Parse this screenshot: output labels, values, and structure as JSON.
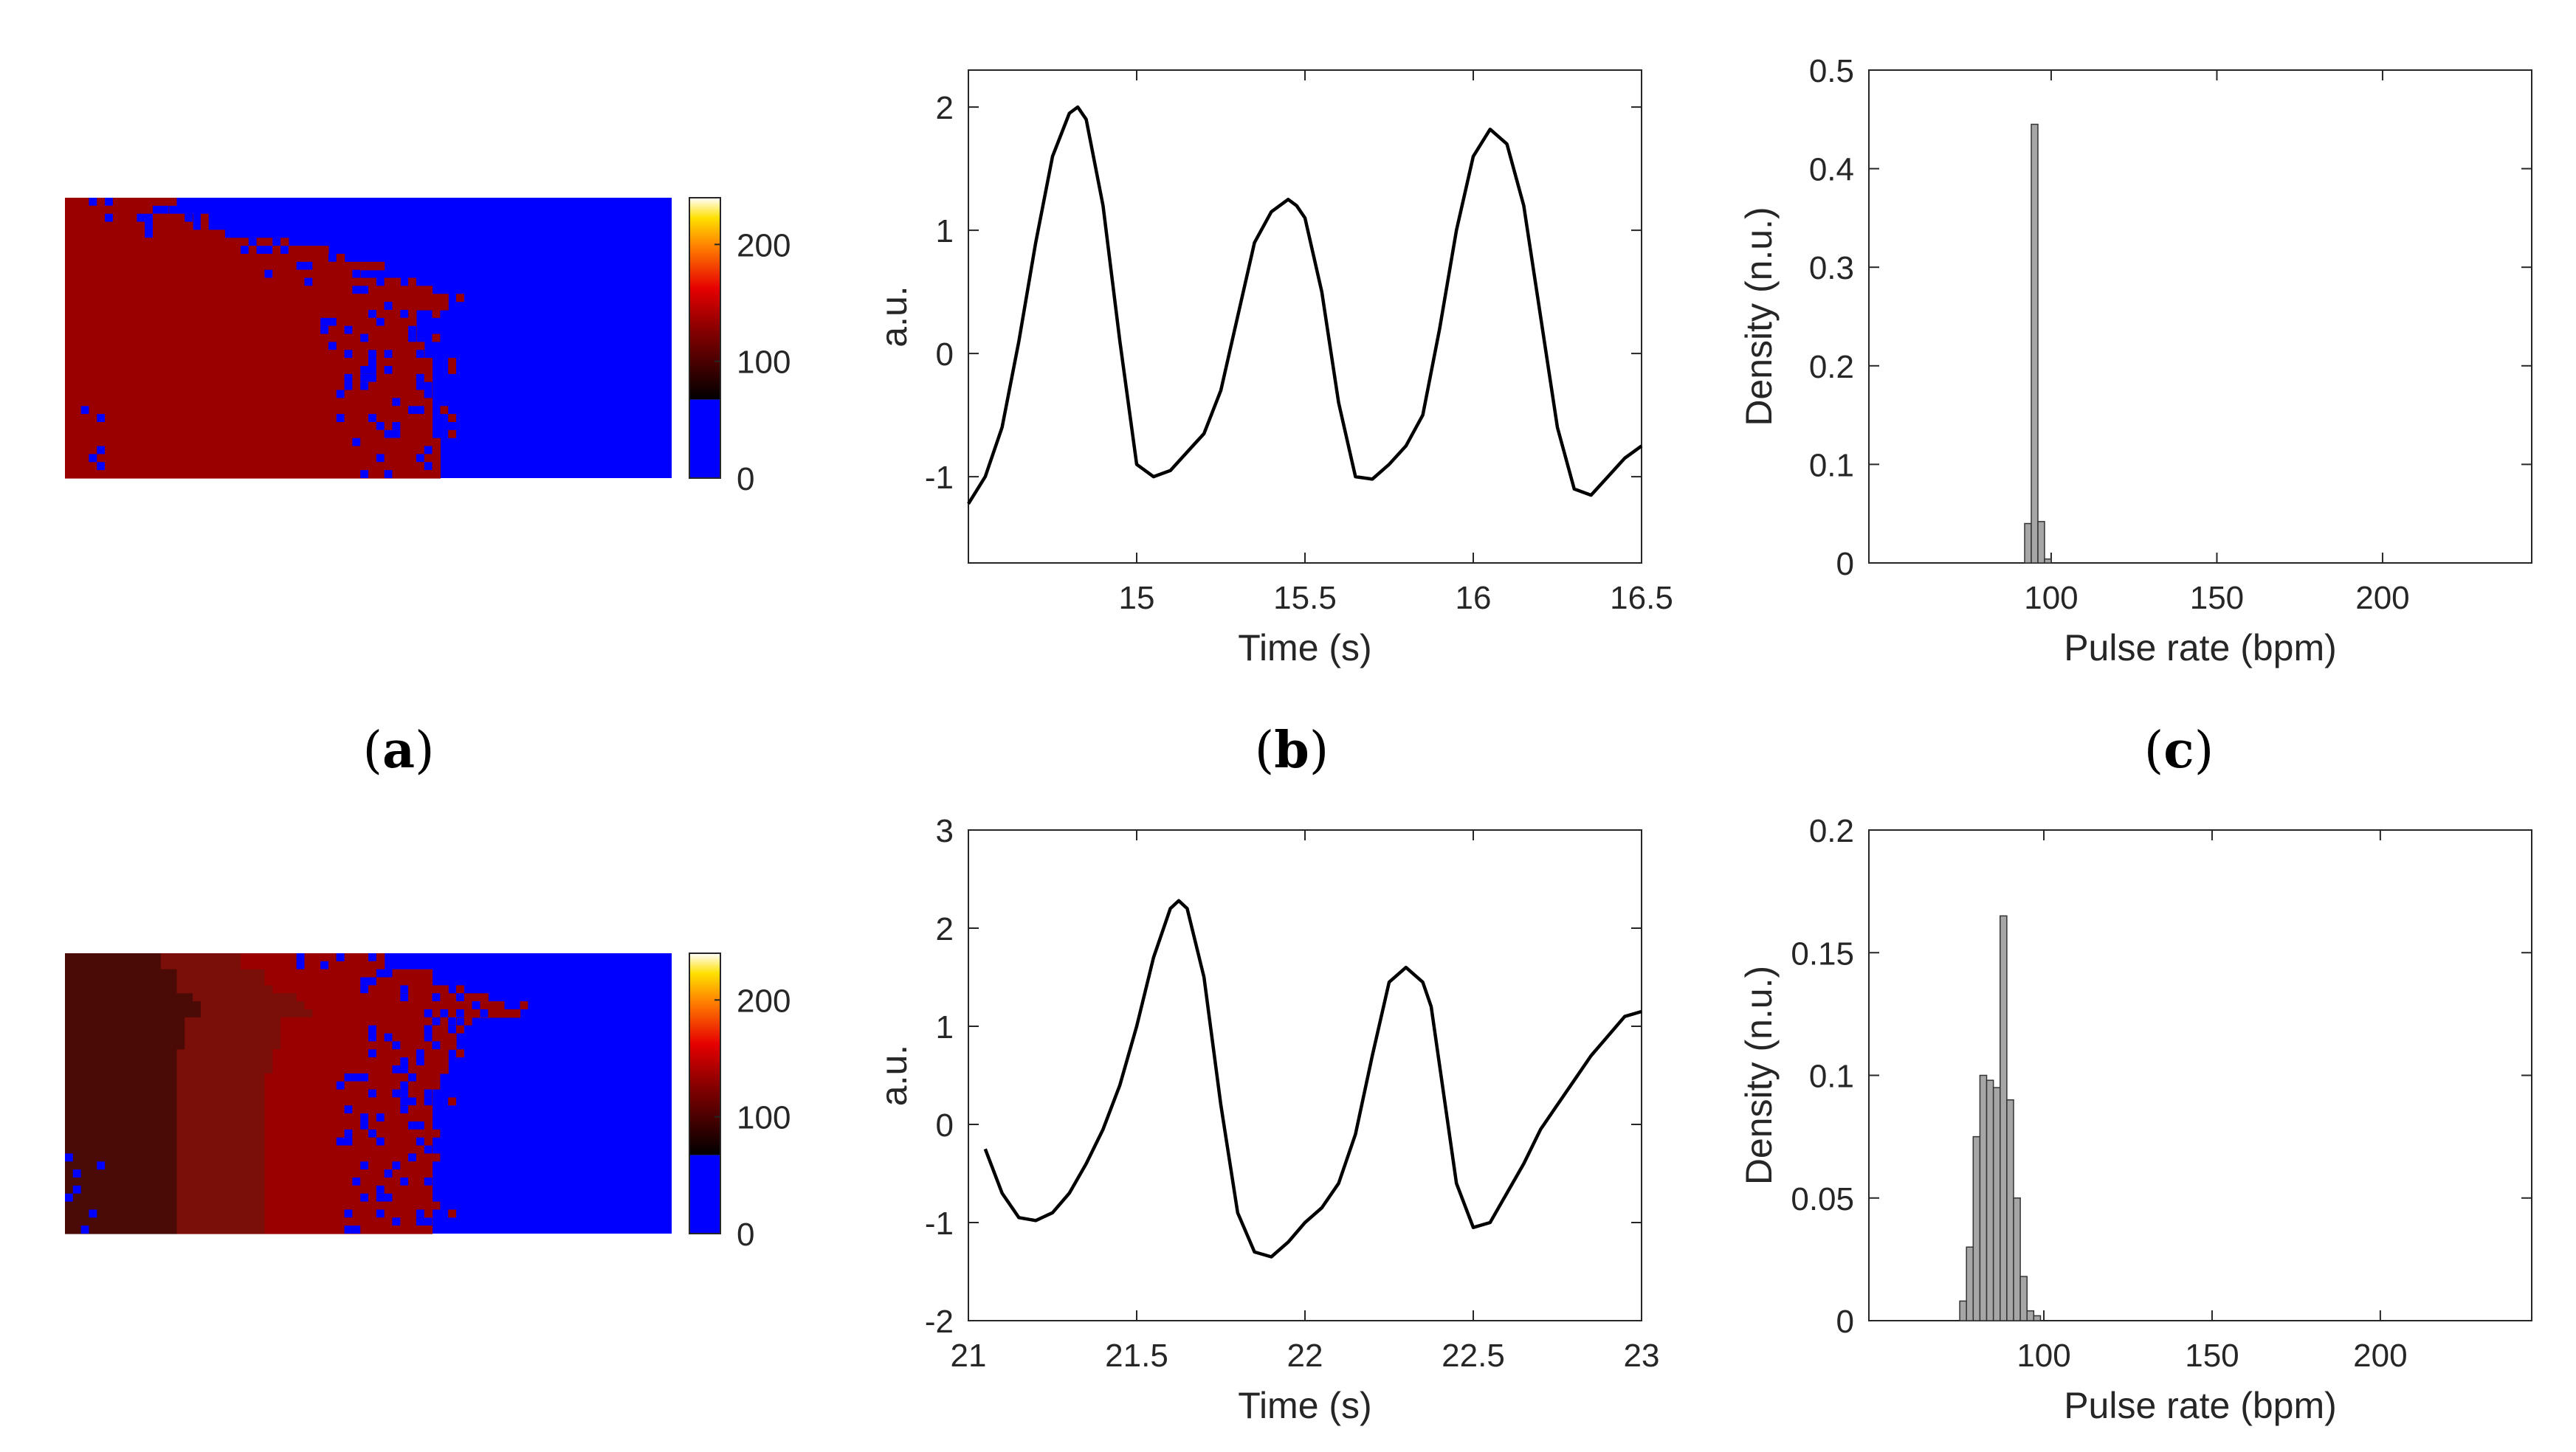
{
  "subfigure_labels": [
    {
      "open": "(",
      "letter": "a",
      "close": ")"
    },
    {
      "open": "(",
      "letter": "b",
      "close": ")"
    },
    {
      "open": "(",
      "letter": "c",
      "close": ")"
    }
  ],
  "colors": {
    "blue": "#0000ff",
    "red_dark": "#9a0000",
    "red_mid": "#7a0e08",
    "red_darker": "#4a0a06",
    "line": "#000000",
    "bar_fill": "#a6a6a6",
    "bar_edge": "#333333",
    "axis": "#262626"
  },
  "chart_data": [
    {
      "id": "heatmap-top",
      "type": "heatmap",
      "grid": {
        "cols": 76,
        "rows": 35
      },
      "boundary_cols": [
        13,
        13,
        16,
        16,
        20,
        28,
        33,
        35,
        40,
        37,
        42,
        46,
        48,
        48,
        44,
        44,
        44,
        44,
        45,
        45,
        46,
        46,
        46,
        46,
        46,
        46,
        46,
        46,
        46,
        46,
        47,
        47,
        47,
        47,
        47
      ],
      "colorbar": {
        "ticks": [
          0,
          100,
          200
        ],
        "range": [
          0,
          240
        ],
        "blue_fraction": 0.28
      }
    },
    {
      "id": "heatmap-bottom",
      "type": "heatmap",
      "grid": {
        "cols": 76,
        "rows": 35
      },
      "boundary_cols": [
        40,
        40,
        46,
        46,
        48,
        53,
        55,
        57,
        49,
        49,
        49,
        49,
        48,
        48,
        48,
        46,
        46,
        46,
        46,
        46,
        46,
        46,
        46,
        46,
        46,
        46,
        46,
        46,
        46,
        46,
        46,
        46,
        46,
        46,
        46
      ],
      "colorbar": {
        "ticks": [
          0,
          100,
          200
        ],
        "range": [
          0,
          240
        ],
        "blue_fraction": 0.28
      }
    },
    {
      "id": "signal-top",
      "type": "line",
      "x": [
        14.5,
        14.55,
        14.6,
        14.65,
        14.7,
        14.75,
        14.8,
        14.825,
        14.85,
        14.9,
        14.95,
        15.0,
        15.05,
        15.1,
        15.15,
        15.2,
        15.25,
        15.3,
        15.35,
        15.4,
        15.45,
        15.475,
        15.5,
        15.55,
        15.6,
        15.65,
        15.7,
        15.75,
        15.8,
        15.85,
        15.9,
        15.95,
        16.0,
        16.05,
        16.1,
        16.15,
        16.2,
        16.25,
        16.3,
        16.35,
        16.4,
        16.45,
        16.5
      ],
      "y": [
        -1.22,
        -1.0,
        -0.6,
        0.1,
        0.9,
        1.6,
        1.95,
        2.0,
        1.9,
        1.2,
        0.1,
        -0.9,
        -1.0,
        -0.95,
        -0.8,
        -0.65,
        -0.3,
        0.3,
        0.9,
        1.15,
        1.25,
        1.2,
        1.1,
        0.5,
        -0.4,
        -1.0,
        -1.02,
        -0.9,
        -0.75,
        -0.5,
        0.2,
        1.0,
        1.6,
        1.82,
        1.7,
        1.2,
        0.3,
        -0.6,
        -1.1,
        -1.15,
        -1.0,
        -0.85,
        -0.75
      ],
      "xlabel": "Time (s)",
      "ylabel": "a.u.",
      "xlim": [
        14.5,
        16.5
      ],
      "ylim": [
        -1.7,
        2.3
      ],
      "xticks": [
        15,
        15.5,
        16,
        16.5
      ],
      "xtick_labels": [
        "15",
        "15.5",
        "16",
        "16.5"
      ],
      "yticks": [
        -1,
        0,
        1,
        2
      ],
      "ytick_labels": [
        "-1",
        "0",
        "1",
        "2"
      ]
    },
    {
      "id": "signal-bottom",
      "type": "line",
      "x": [
        21.05,
        21.1,
        21.15,
        21.2,
        21.25,
        21.3,
        21.35,
        21.4,
        21.45,
        21.5,
        21.55,
        21.6,
        21.625,
        21.65,
        21.7,
        21.75,
        21.8,
        21.85,
        21.9,
        21.95,
        22.0,
        22.05,
        22.1,
        22.15,
        22.2,
        22.25,
        22.3,
        22.35,
        22.375,
        22.4,
        22.45,
        22.5,
        22.55,
        22.6,
        22.65,
        22.7,
        22.75,
        22.8,
        22.85,
        22.9,
        22.95,
        23.0
      ],
      "y": [
        -0.25,
        -0.7,
        -0.95,
        -0.98,
        -0.9,
        -0.7,
        -0.4,
        -0.05,
        0.4,
        1.0,
        1.7,
        2.2,
        2.28,
        2.2,
        1.5,
        0.2,
        -0.9,
        -1.3,
        -1.35,
        -1.2,
        -1.0,
        -0.85,
        -0.6,
        -0.1,
        0.7,
        1.45,
        1.6,
        1.45,
        1.2,
        0.6,
        -0.6,
        -1.05,
        -1.0,
        -0.7,
        -0.4,
        -0.05,
        0.2,
        0.45,
        0.7,
        0.9,
        1.1,
        1.15
      ],
      "xlabel": "Time (s)",
      "ylabel": "a.u.",
      "xlim": [
        21,
        23
      ],
      "ylim": [
        -2,
        3
      ],
      "xticks": [
        21,
        21.5,
        22,
        22.5,
        23
      ],
      "xtick_labels": [
        "21",
        "21.5",
        "22",
        "22.5",
        "23"
      ],
      "yticks": [
        -2,
        -1,
        0,
        1,
        2,
        3
      ],
      "ytick_labels": [
        "-2",
        "-1",
        "0",
        "1",
        "2",
        "3"
      ]
    },
    {
      "id": "hist-top",
      "type": "bar",
      "bin_width": 2,
      "bin_starts": [
        92,
        94,
        96,
        98
      ],
      "values": [
        0.04,
        0.445,
        0.042,
        0.004
      ],
      "xlabel": "Pulse rate (bpm)",
      "ylabel": "Density (n.u.)",
      "xlim": [
        45,
        245
      ],
      "ylim": [
        0,
        0.5
      ],
      "xticks": [
        100,
        150,
        200
      ],
      "xtick_labels": [
        "100",
        "150",
        "200"
      ],
      "yticks": [
        0,
        0.1,
        0.2,
        0.3,
        0.4,
        0.5
      ],
      "ytick_labels": [
        "0",
        "0.1",
        "0.2",
        "0.3",
        "0.4",
        "0.5"
      ]
    },
    {
      "id": "hist-bottom",
      "type": "bar",
      "bin_width": 2,
      "bin_starts": [
        75,
        77,
        79,
        81,
        83,
        85,
        87,
        89,
        91,
        93,
        95,
        97
      ],
      "values": [
        0.008,
        0.03,
        0.075,
        0.1,
        0.098,
        0.095,
        0.165,
        0.09,
        0.05,
        0.018,
        0.004,
        0.002
      ],
      "xlabel": "Pulse rate (bpm)",
      "ylabel": "Density (n.u.)",
      "xlim": [
        48,
        245
      ],
      "ylim": [
        0,
        0.2
      ],
      "xticks": [
        100,
        150,
        200
      ],
      "xtick_labels": [
        "100",
        "150",
        "200"
      ],
      "yticks": [
        0,
        0.05,
        0.1,
        0.15,
        0.2
      ],
      "ytick_labels": [
        "0",
        "0.05",
        "0.1",
        "0.15",
        "0.2"
      ]
    }
  ]
}
